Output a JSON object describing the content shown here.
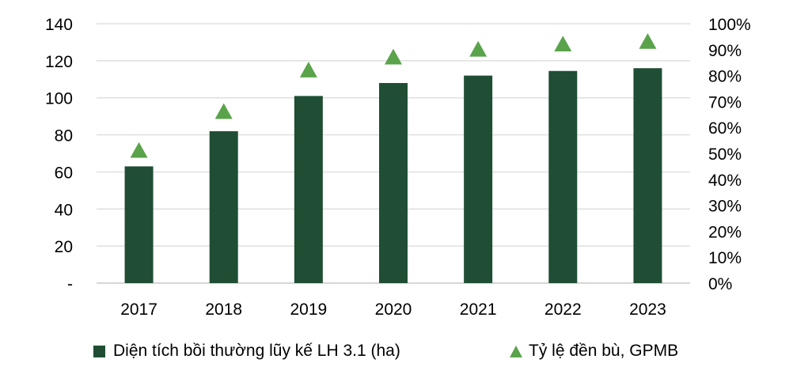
{
  "chart_data": {
    "type": "bar",
    "categories": [
      "2017",
      "2018",
      "2019",
      "2020",
      "2021",
      "2022",
      "2023"
    ],
    "series": [
      {
        "name": "Diện tích bồi thường lũy kế LH 3.1 (ha)",
        "type": "bar",
        "axis": "left",
        "color": "#1f4e34",
        "values": [
          63,
          82,
          101,
          108,
          112,
          114.5,
          116
        ]
      },
      {
        "name": "Tỷ lệ đền bù, GPMB",
        "type": "scatter",
        "marker": "triangle",
        "axis": "right",
        "color": "#5aa34a",
        "values": [
          0.51,
          0.66,
          0.82,
          0.87,
          0.9,
          0.92,
          0.93
        ]
      }
    ],
    "y_left": {
      "ylim": [
        0,
        140
      ],
      "ticks": [
        0,
        20,
        40,
        60,
        80,
        100,
        120,
        140
      ],
      "tick_labels": [
        "-",
        "20",
        "40",
        "60",
        "80",
        "100",
        "120",
        "140"
      ]
    },
    "y_right": {
      "ylim": [
        0,
        1
      ],
      "ticks": [
        0,
        0.1,
        0.2,
        0.3,
        0.4,
        0.5,
        0.6,
        0.7,
        0.8,
        0.9,
        1.0
      ],
      "tick_labels": [
        "0%",
        "10%",
        "20%",
        "30%",
        "40%",
        "50%",
        "60%",
        "70%",
        "80%",
        "90%",
        "100%"
      ]
    },
    "grid": true,
    "legend_position": "bottom"
  }
}
